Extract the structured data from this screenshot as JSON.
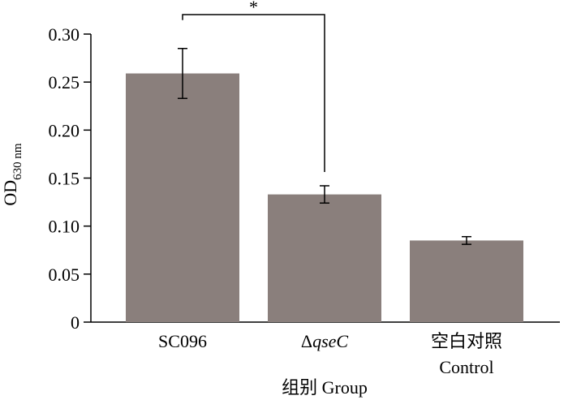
{
  "chart_data": {
    "type": "bar",
    "ylabel": "OD",
    "ylabel_subscript": "630 nm",
    "xlabel": "组别 Group",
    "ylim": [
      0,
      0.3
    ],
    "yticks": [
      "0",
      "0.05",
      "0.10",
      "0.15",
      "0.20",
      "0.25",
      "0.30"
    ],
    "categories": [
      {
        "prefix": "",
        "italic": "",
        "line1": "SC096",
        "line2": ""
      },
      {
        "prefix": "Δ",
        "italic": "qseC",
        "line1": "",
        "line2": ""
      },
      {
        "prefix": "",
        "italic": "",
        "line1": "空白对照",
        "line2": "Control"
      }
    ],
    "values": [
      0.259,
      0.133,
      0.085
    ],
    "errors": [
      0.026,
      0.009,
      0.004
    ],
    "bar_color": "#8a7f7c",
    "significance": {
      "from": 0,
      "to": 1,
      "label": "*"
    }
  }
}
